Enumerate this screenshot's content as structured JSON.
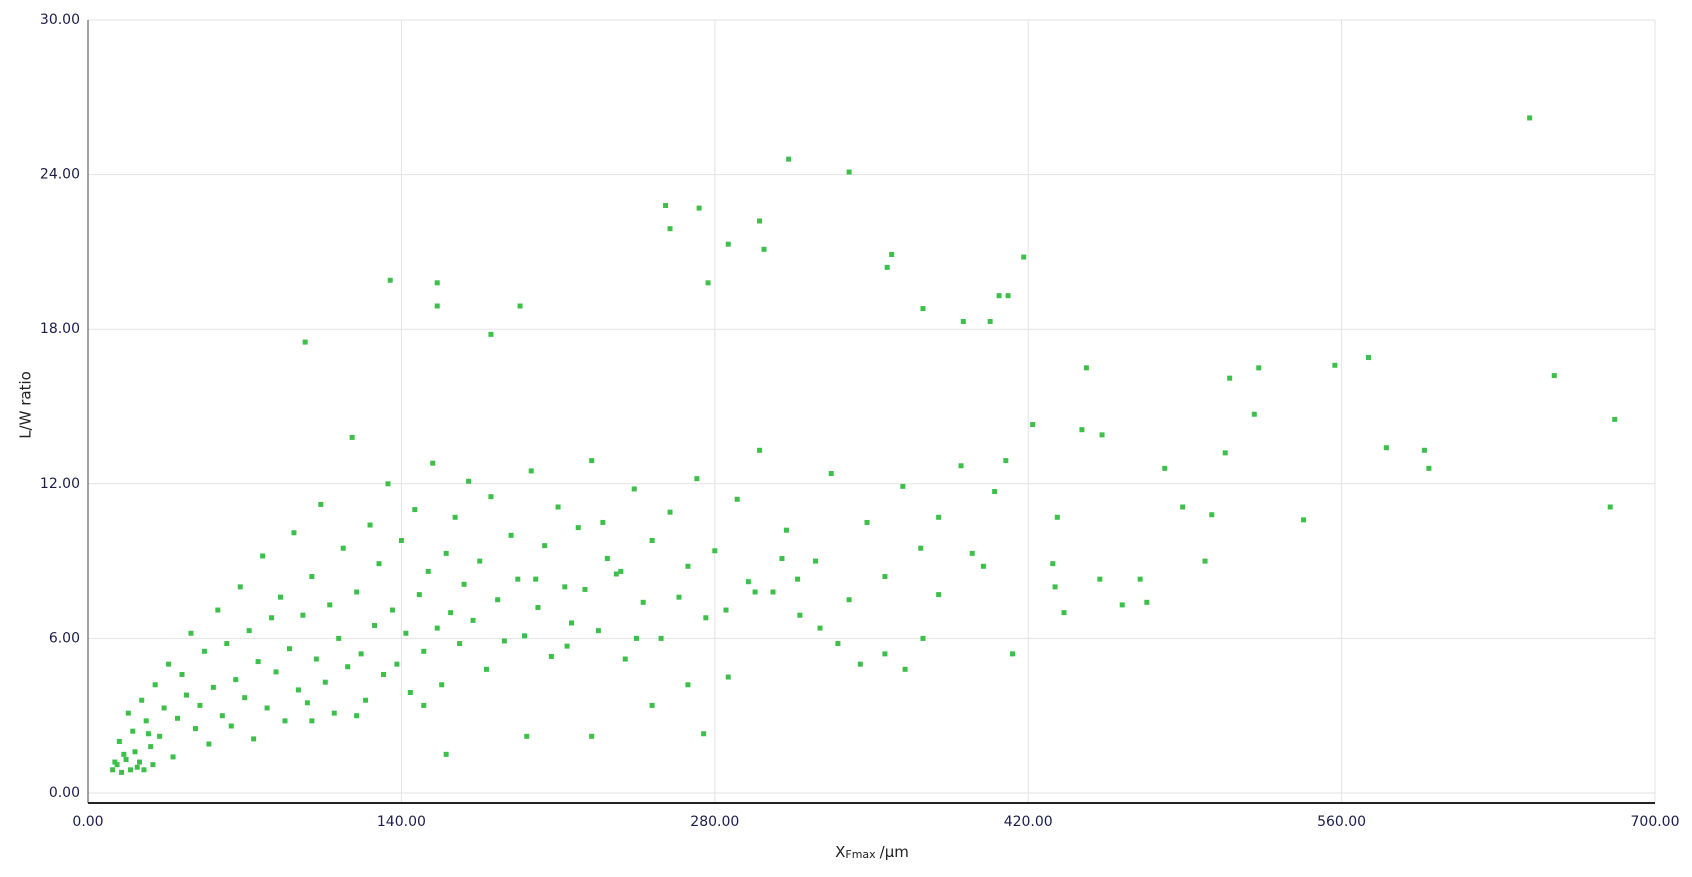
{
  "chart_data": {
    "type": "scatter",
    "x_label": {
      "main": "X",
      "sub": "Fmax",
      "unit": "/µm"
    },
    "y_label": "L/W ratio",
    "color": "#3cc04a",
    "grid": true,
    "xlim": [
      0,
      700
    ],
    "ylim": [
      0,
      30
    ],
    "xticks": [
      {
        "value": 0,
        "label": "0.00"
      },
      {
        "value": 140,
        "label": "140.00"
      },
      {
        "value": 280,
        "label": "280.00"
      },
      {
        "value": 420,
        "label": "420.00"
      },
      {
        "value": 560,
        "label": "560.00"
      },
      {
        "value": 700,
        "label": "700.00"
      }
    ],
    "yticks": [
      {
        "value": 0,
        "label": "0.00"
      },
      {
        "value": 6,
        "label": "6.00"
      },
      {
        "value": 12,
        "label": "12.00"
      },
      {
        "value": 18,
        "label": "18.00"
      },
      {
        "value": 24,
        "label": "24.00"
      },
      {
        "value": 30,
        "label": "30.00"
      }
    ],
    "x": [
      12,
      14,
      16,
      18,
      20,
      22,
      24,
      26,
      28,
      30,
      32,
      34,
      36,
      38,
      40,
      42,
      44,
      46,
      48,
      50,
      52,
      54,
      56,
      58,
      60,
      62,
      64,
      66,
      68,
      70,
      72,
      74,
      76,
      78,
      80,
      82,
      84,
      86,
      88,
      90,
      92,
      94,
      96,
      98,
      100,
      102,
      104,
      106,
      108,
      110,
      112,
      114,
      116,
      118,
      120,
      122,
      124,
      126,
      128,
      130,
      132,
      134,
      136,
      138,
      140,
      142,
      144,
      146,
      148,
      150,
      152,
      154,
      156,
      158,
      160,
      162,
      164,
      166,
      168,
      170,
      172,
      175,
      178,
      180,
      183,
      186,
      189,
      192,
      195,
      198,
      201,
      204,
      207,
      210,
      213,
      216,
      219,
      222,
      225,
      228,
      232,
      236,
      240,
      244,
      248,
      252,
      256,
      260,
      264,
      268,
      272,
      276,
      280,
      285,
      290,
      295,
      300,
      306,
      312,
      318,
      325,
      332,
      340,
      348,
      356,
      364,
      372,
      380,
      390,
      400,
      11,
      13,
      15,
      17,
      19,
      21,
      23,
      25,
      27,
      29,
      97,
      135,
      156,
      156,
      193,
      180,
      258,
      260,
      273,
      286,
      277,
      302,
      313,
      300,
      340,
      357,
      359,
      373,
      391,
      403,
      407,
      411,
      418,
      644,
      446,
      510,
      523,
      557,
      572,
      655,
      682,
      580,
      597,
      599,
      680,
      543,
      521,
      508,
      481,
      489,
      502,
      499,
      470,
      473,
      462,
      452,
      436,
      432,
      431,
      433,
      444,
      453,
      422,
      413,
      410,
      405,
      395,
      380,
      373,
      365,
      356,
      345,
      335,
      327,
      317,
      310,
      298,
      286,
      275,
      268,
      252,
      245,
      238,
      230,
      225,
      214,
      200,
      196,
      160,
      150,
      120,
      100
    ],
    "values": [
      1.2,
      2.0,
      1.5,
      3.1,
      2.4,
      1.0,
      3.6,
      2.8,
      1.8,
      4.2,
      2.2,
      3.3,
      5.0,
      1.4,
      2.9,
      4.6,
      3.8,
      6.2,
      2.5,
      3.4,
      5.5,
      1.9,
      4.1,
      7.1,
      3.0,
      5.8,
      2.6,
      4.4,
      8.0,
      3.7,
      6.3,
      2.1,
      5.1,
      9.2,
      3.3,
      6.8,
      4.7,
      7.6,
      2.8,
      5.6,
      10.1,
      4.0,
      6.9,
      3.5,
      8.4,
      5.2,
      11.2,
      4.3,
      7.3,
      3.1,
      6.0,
      9.5,
      4.9,
      13.8,
      7.8,
      5.4,
      3.6,
      10.4,
      6.5,
      8.9,
      4.6,
      12.0,
      7.1,
      5.0,
      9.8,
      6.2,
      3.9,
      11.0,
      7.7,
      5.5,
      8.6,
      12.8,
      6.4,
      4.2,
      9.3,
      7.0,
      10.7,
      5.8,
      8.1,
      12.1,
      6.7,
      9.0,
      4.8,
      11.5,
      7.5,
      5.9,
      10.0,
      8.3,
      6.1,
      12.5,
      7.2,
      9.6,
      5.3,
      11.1,
      8.0,
      6.6,
      10.3,
      7.9,
      12.9,
      6.3,
      9.1,
      8.5,
      5.2,
      11.8,
      7.4,
      9.8,
      6.0,
      10.9,
      7.6,
      8.8,
      12.2,
      6.8,
      9.4,
      7.1,
      11.4,
      8.2,
      13.3,
      7.8,
      10.2,
      6.9,
      9.0,
      12.4,
      7.5,
      10.5,
      8.4,
      11.9,
      9.5,
      7.7,
      12.7,
      8.8,
      0.9,
      1.1,
      0.8,
      1.3,
      0.9,
      1.6,
      1.2,
      0.9,
      2.3,
      1.1,
      17.5,
      19.9,
      19.8,
      18.9,
      18.9,
      17.8,
      22.8,
      21.9,
      22.7,
      21.3,
      19.8,
      21.1,
      24.6,
      22.2,
      24.1,
      20.4,
      20.9,
      18.8,
      18.3,
      18.3,
      19.3,
      19.3,
      20.8,
      26.2,
      16.5,
      16.1,
      16.5,
      16.6,
      16.9,
      16.2,
      14.5,
      13.4,
      13.3,
      12.6,
      11.1,
      10.6,
      14.7,
      13.2,
      12.6,
      11.1,
      10.8,
      9.0,
      8.3,
      7.4,
      7.3,
      8.3,
      7.0,
      8.0,
      8.9,
      10.7,
      14.1,
      13.9,
      14.3,
      5.4,
      12.9,
      11.7,
      9.3,
      10.7,
      6.0,
      4.8,
      5.4,
      5.0,
      5.8,
      6.4,
      8.3,
      9.1,
      7.8,
      4.5,
      2.3,
      4.2,
      3.4,
      6.0,
      8.6,
      10.5,
      2.2,
      5.7,
      8.3,
      2.2,
      1.5,
      3.4,
      3.0,
      2.8
    ]
  }
}
